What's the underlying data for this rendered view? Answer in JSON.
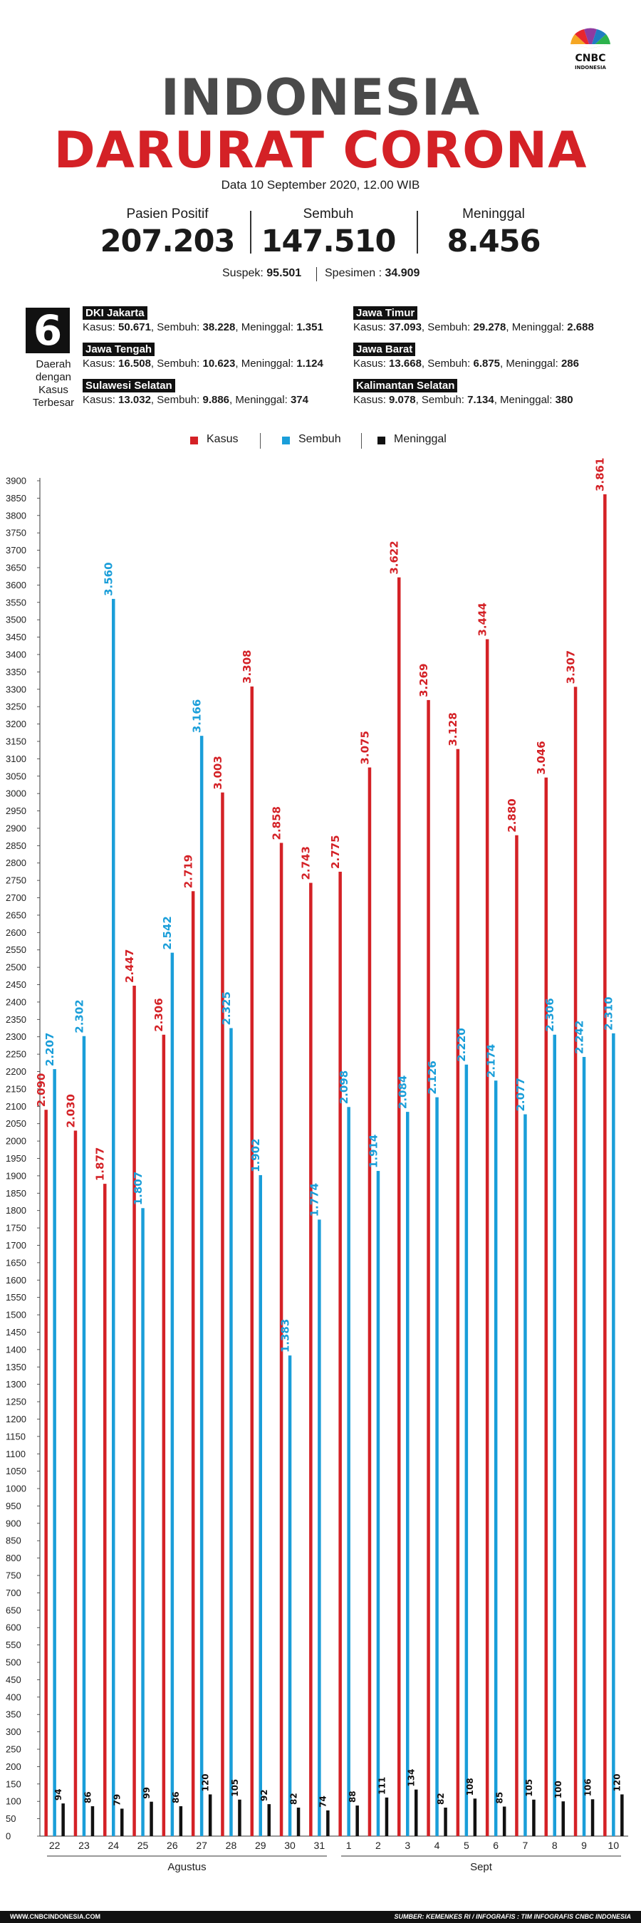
{
  "logo": {
    "text": "CNBC",
    "subtext": "INDONESIA"
  },
  "header": {
    "title_line1": "INDONESIA",
    "title_line2": "DARURAT CORONA",
    "date": "Data 10 September 2020, 12.00 WIB"
  },
  "stats": [
    {
      "label": "Pasien Positif",
      "value": "207.203"
    },
    {
      "label": "Sembuh",
      "value": "147.510"
    },
    {
      "label": "Meninggal",
      "value": "8.456"
    }
  ],
  "sub_stats": {
    "suspek_label": "Suspek:",
    "suspek_value": "95.501",
    "spesimen_label": "Spesimen :",
    "spesimen_value": "34.909"
  },
  "regions": {
    "count": "6",
    "caption_lines": [
      "Daerah",
      "dengan",
      "Kasus",
      "Terbesar"
    ],
    "items": [
      {
        "name": "DKI Jakarta",
        "kasus": "50.671",
        "sembuh": "38.228",
        "meninggal": "1.351"
      },
      {
        "name": "Jawa Timur",
        "kasus": "37.093",
        "sembuh": "29.278",
        "meninggal": "2.688"
      },
      {
        "name": "Jawa Tengah",
        "kasus": "16.508",
        "sembuh": "10.623",
        "meninggal": "1.124"
      },
      {
        "name": "Jawa Barat",
        "kasus": "13.668",
        "sembuh": "6.875",
        "meninggal": "286"
      },
      {
        "name": "Sulawesi Selatan",
        "kasus": "13.032",
        "sembuh": "9.886",
        "meninggal": "374"
      },
      {
        "name": "Kalimantan Selatan",
        "kasus": "9.078",
        "sembuh": "7.134",
        "meninggal": "380"
      }
    ],
    "labels": {
      "kasus": "Kasus:",
      "sembuh": "Sembuh:",
      "meninggal": "Meninggal:"
    }
  },
  "colors": {
    "kasus": "#d42126",
    "sembuh": "#1a9ed9",
    "meninggal": "#111111",
    "title_gray": "#4a4a4a"
  },
  "chart_data": {
    "type": "bar",
    "categories": [
      "22",
      "23",
      "24",
      "25",
      "26",
      "27",
      "28",
      "29",
      "30",
      "31",
      "1",
      "2",
      "3",
      "4",
      "5",
      "6",
      "7",
      "8",
      "9",
      "10"
    ],
    "groups": [
      {
        "label": "Agustus",
        "from": 0,
        "to": 9
      },
      {
        "label": "Sept",
        "from": 10,
        "to": 19
      }
    ],
    "series": [
      {
        "name": "Kasus",
        "color": "#d42126",
        "values": [
          2090,
          2030,
          1877,
          2447,
          2306,
          2719,
          3003,
          3308,
          2858,
          2743,
          2775,
          3075,
          3622,
          3269,
          3128,
          3444,
          2880,
          3046,
          3307,
          3861
        ],
        "labels": [
          "2.090",
          "2.030",
          "1.877",
          "2.447",
          "2.306",
          "2.719",
          "3.003",
          "3.308",
          "2.858",
          "2.743",
          "2.775",
          "3.075",
          "3.622",
          "3.269",
          "3.128",
          "3.444",
          "2.880",
          "3.046",
          "3.307",
          "3.861"
        ]
      },
      {
        "name": "Sembuh",
        "color": "#1a9ed9",
        "values": [
          2207,
          2302,
          3560,
          1807,
          2542,
          3166,
          2325,
          1902,
          1383,
          1774,
          2098,
          1914,
          2084,
          2126,
          2220,
          2174,
          2077,
          2306,
          2242,
          2310
        ],
        "labels": [
          "2.207",
          "2.302",
          "3.560",
          "1.807",
          "2.542",
          "3.166",
          "2.325",
          "1.902",
          "1.383",
          "1.774",
          "2.098",
          "1.914",
          "2.084",
          "2.126",
          "2.220",
          "2.174",
          "2.077",
          "2.306",
          "2.242",
          "2.310"
        ]
      },
      {
        "name": "Meninggal",
        "color": "#111111",
        "values": [
          94,
          86,
          79,
          99,
          86,
          120,
          105,
          92,
          82,
          74,
          88,
          111,
          134,
          82,
          108,
          85,
          105,
          100,
          106,
          120
        ],
        "labels": [
          "94",
          "86",
          "79",
          "99",
          "86",
          "120",
          "105",
          "92",
          "82",
          "74",
          "88",
          "111",
          "134",
          "82",
          "108",
          "85",
          "105",
          "100",
          "106",
          "120"
        ]
      }
    ],
    "ylim": [
      0,
      3900
    ],
    "ytick_step": 50,
    "grid": false,
    "legend": "top-center"
  },
  "footer": {
    "left": "WWW.CNBCINDONESIA.COM",
    "right": "SUMBER: KEMENKES RI / INFOGRAFIS : TIM INFOGRAFIS CNBC INDONESIA"
  }
}
